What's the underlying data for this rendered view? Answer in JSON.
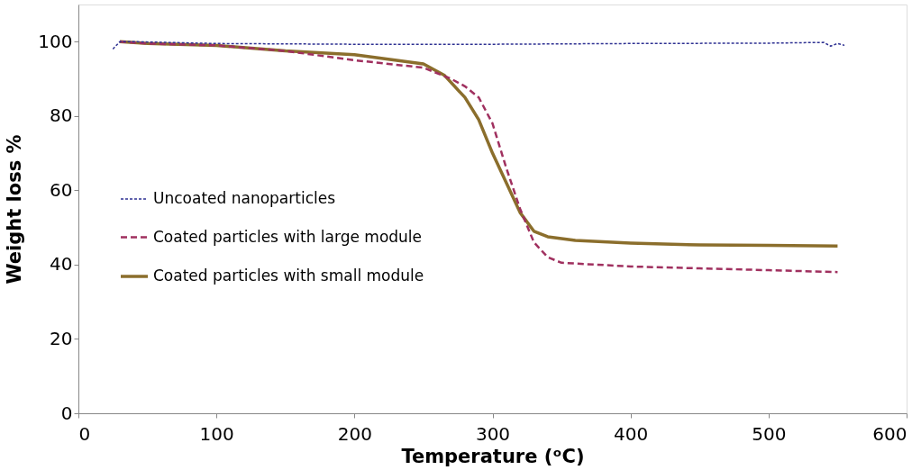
{
  "chart_data": {
    "type": "line",
    "xlabel": "Temperature (ᵒC)",
    "ylabel": "Weight loss %",
    "xlim": [
      0,
      600
    ],
    "xticks": [
      0,
      100,
      200,
      300,
      400,
      500,
      600
    ],
    "ylim": [
      0,
      110
    ],
    "yticks": [
      0,
      20,
      40,
      60,
      80,
      100
    ],
    "grid": false,
    "legend": "left",
    "marker": "none",
    "series": [
      {
        "name": "Uncoated nanoparticles",
        "color": "#2e3192",
        "line_style": "dotted",
        "x": [
          25,
          30,
          40,
          100,
          200,
          300,
          400,
          500,
          540,
          545,
          550,
          555
        ],
        "values": [
          98,
          100,
          100,
          99.5,
          99.3,
          99.3,
          99.5,
          99.6,
          99.8,
          98.8,
          99.5,
          99
        ]
      },
      {
        "name": "Coated particles with large module",
        "color": "#a0305f",
        "line_style": "dashed",
        "x": [
          30,
          50,
          100,
          150,
          200,
          250,
          270,
          280,
          290,
          300,
          310,
          320,
          330,
          340,
          350,
          400,
          450,
          500,
          550
        ],
        "values": [
          100,
          99.5,
          99,
          97.5,
          95,
          93,
          90,
          88,
          85,
          78,
          66,
          55,
          46,
          42,
          40.5,
          39.5,
          39,
          38.5,
          38
        ]
      },
      {
        "name": "Coated particles with small module",
        "color": "#8b6e2c",
        "line_style": "solid",
        "x": [
          30,
          50,
          100,
          150,
          200,
          250,
          265,
          280,
          290,
          300,
          310,
          320,
          330,
          340,
          360,
          400,
          450,
          500,
          550
        ],
        "values": [
          100,
          99.5,
          99,
          97.5,
          96.5,
          94,
          91,
          85,
          79,
          70,
          62,
          54,
          49,
          47.5,
          46.5,
          45.8,
          45.3,
          45.2,
          45
        ]
      }
    ]
  }
}
